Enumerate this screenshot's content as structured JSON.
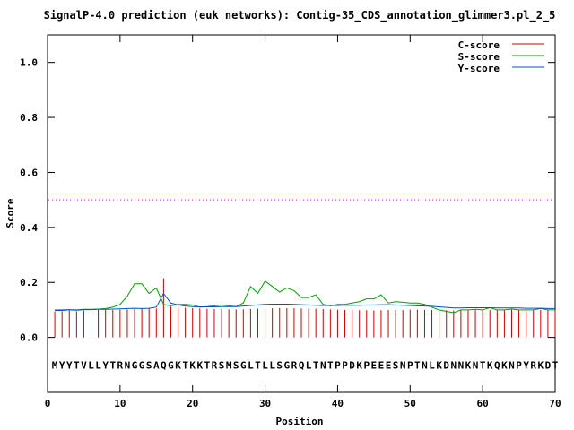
{
  "chart_data": {
    "type": "line",
    "title": "SignalP-4.0 prediction (euk networks): Contig-35_CDS_annotation_glimmer3.pl_2_5",
    "xlabel": "Position",
    "ylabel": "Score",
    "xlim": [
      0,
      70
    ],
    "ylim": [
      -0.2,
      1.1
    ],
    "xticks": [
      "0",
      "10",
      "20",
      "30",
      "40",
      "50",
      "60",
      "70"
    ],
    "yticks": [
      "0.0",
      "0.2",
      "0.4",
      "0.6",
      "0.8",
      "1.0"
    ],
    "threshold": 0.5,
    "threshold_color": "#ff00ff",
    "legend_position": "top-right",
    "sequence": [
      "M",
      "Y",
      "Y",
      "T",
      "V",
      "L",
      "L",
      "Y",
      "T",
      "R",
      "N",
      "G",
      "G",
      "S",
      "A",
      "Q",
      "G",
      "K",
      "T",
      "K",
      "K",
      "T",
      "R",
      "S",
      "M",
      "S",
      "G",
      "L",
      "T",
      "L",
      "L",
      "S",
      "G",
      "R",
      "Q",
      "L",
      "T",
      "N",
      "T",
      "P",
      "P",
      "D",
      "K",
      "P",
      "E",
      "E",
      "E",
      "S",
      "N",
      "P",
      "T",
      "N",
      "L",
      "K",
      "D",
      "N",
      "N",
      "K",
      "N",
      "T",
      "K",
      "Q",
      "K",
      "N",
      "P",
      "Y",
      "R",
      "K",
      "D",
      "T"
    ],
    "series": [
      {
        "name": "C-score",
        "color": "#cc0000",
        "style": "impulse",
        "values": [
          0.095,
          0.095,
          0.097,
          0.095,
          0.098,
          0.099,
          0.1,
          0.1,
          0.1,
          0.101,
          0.102,
          0.103,
          0.104,
          0.105,
          0.105,
          0.215,
          0.112,
          0.11,
          0.108,
          0.107,
          0.105,
          0.104,
          0.103,
          0.103,
          0.102,
          0.102,
          0.102,
          0.103,
          0.104,
          0.105,
          0.106,
          0.107,
          0.106,
          0.106,
          0.105,
          0.105,
          0.104,
          0.103,
          0.102,
          0.101,
          0.1,
          0.1,
          0.099,
          0.099,
          0.098,
          0.099,
          0.1,
          0.1,
          0.1,
          0.101,
          0.101,
          0.1,
          0.1,
          0.099,
          0.099,
          0.098,
          0.098,
          0.099,
          0.099,
          0.1,
          0.1,
          0.1,
          0.101,
          0.101,
          0.101,
          0.101,
          0.1,
          0.1,
          0.1,
          0.1
        ]
      },
      {
        "name": "S-score",
        "color": "#00a000",
        "style": "line",
        "values": [
          0.1,
          0.1,
          0.101,
          0.1,
          0.102,
          0.102,
          0.103,
          0.105,
          0.11,
          0.12,
          0.15,
          0.195,
          0.195,
          0.16,
          0.18,
          0.12,
          0.115,
          0.12,
          0.12,
          0.118,
          0.11,
          0.112,
          0.115,
          0.118,
          0.115,
          0.112,
          0.125,
          0.185,
          0.16,
          0.205,
          0.185,
          0.165,
          0.18,
          0.17,
          0.145,
          0.145,
          0.155,
          0.12,
          0.115,
          0.12,
          0.12,
          0.125,
          0.13,
          0.14,
          0.14,
          0.155,
          0.125,
          0.13,
          0.128,
          0.125,
          0.125,
          0.12,
          0.11,
          0.1,
          0.095,
          0.09,
          0.1,
          0.1,
          0.102,
          0.1,
          0.108,
          0.1,
          0.1,
          0.103,
          0.1,
          0.1,
          0.1,
          0.105,
          0.1,
          0.1
        ]
      },
      {
        "name": "Y-score",
        "color": "#0050c8",
        "style": "line",
        "values": [
          0.098,
          0.098,
          0.1,
          0.099,
          0.101,
          0.101,
          0.102,
          0.102,
          0.103,
          0.104,
          0.105,
          0.106,
          0.105,
          0.106,
          0.11,
          0.16,
          0.125,
          0.118,
          0.114,
          0.112,
          0.111,
          0.111,
          0.111,
          0.112,
          0.112,
          0.112,
          0.114,
          0.116,
          0.118,
          0.12,
          0.121,
          0.121,
          0.121,
          0.12,
          0.119,
          0.118,
          0.117,
          0.116,
          0.116,
          0.116,
          0.117,
          0.117,
          0.117,
          0.118,
          0.118,
          0.119,
          0.119,
          0.118,
          0.117,
          0.116,
          0.115,
          0.114,
          0.113,
          0.111,
          0.109,
          0.107,
          0.107,
          0.108,
          0.108,
          0.108,
          0.108,
          0.107,
          0.107,
          0.107,
          0.107,
          0.106,
          0.106,
          0.106,
          0.105,
          0.105
        ]
      }
    ]
  }
}
